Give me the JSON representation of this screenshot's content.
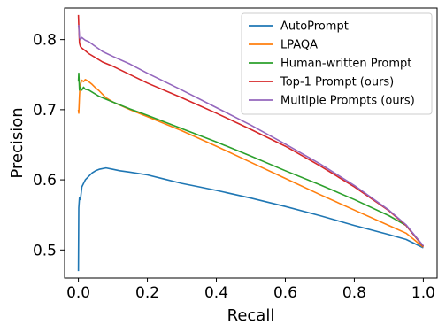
{
  "chart_data": {
    "type": "line",
    "xlabel": "Recall",
    "ylabel": "Precision",
    "xlim": [
      -0.04,
      1.04
    ],
    "ylim": [
      0.46,
      0.845
    ],
    "xticks": [
      0.0,
      0.2,
      0.4,
      0.6,
      0.8,
      1.0
    ],
    "xtick_labels": [
      "0.0",
      "0.2",
      "0.4",
      "0.6",
      "0.8",
      "1.0"
    ],
    "yticks": [
      0.5,
      0.6,
      0.7,
      0.8
    ],
    "ytick_labels": [
      "0.5",
      "0.6",
      "0.7",
      "0.8"
    ],
    "grid": false,
    "legend_position": "top-right",
    "series": [
      {
        "name": "AutoPrompt",
        "color": "#1f77b4",
        "x": [
          0.0,
          0.001,
          0.003,
          0.006,
          0.01,
          0.015,
          0.02,
          0.03,
          0.04,
          0.05,
          0.06,
          0.08,
          0.1,
          0.12,
          0.15,
          0.2,
          0.25,
          0.3,
          0.35,
          0.4,
          0.5,
          0.6,
          0.7,
          0.8,
          0.9,
          0.95,
          1.0
        ],
        "y": [
          0.47,
          0.56,
          0.575,
          0.572,
          0.59,
          0.595,
          0.6,
          0.605,
          0.61,
          0.613,
          0.615,
          0.617,
          0.615,
          0.613,
          0.611,
          0.607,
          0.601,
          0.595,
          0.59,
          0.585,
          0.574,
          0.562,
          0.549,
          0.535,
          0.522,
          0.515,
          0.503
        ]
      },
      {
        "name": "LPAQA",
        "color": "#ff7f0e",
        "x": [
          0.0,
          0.001,
          0.003,
          0.005,
          0.01,
          0.015,
          0.02,
          0.03,
          0.04,
          0.05,
          0.06,
          0.08,
          0.1,
          0.15,
          0.2,
          0.3,
          0.4,
          0.5,
          0.6,
          0.7,
          0.8,
          0.9,
          0.95,
          1.0
        ],
        "y": [
          0.7,
          0.695,
          0.72,
          0.735,
          0.742,
          0.74,
          0.743,
          0.74,
          0.736,
          0.731,
          0.727,
          0.717,
          0.711,
          0.7,
          0.69,
          0.67,
          0.648,
          0.625,
          0.602,
          0.579,
          0.557,
          0.535,
          0.524,
          0.504
        ]
      },
      {
        "name": "Human-written Prompt",
        "color": "#2ca02c",
        "x": [
          0.0,
          0.001,
          0.003,
          0.005,
          0.01,
          0.015,
          0.02,
          0.03,
          0.04,
          0.05,
          0.06,
          0.08,
          0.1,
          0.15,
          0.2,
          0.3,
          0.4,
          0.5,
          0.6,
          0.7,
          0.8,
          0.9,
          0.95,
          1.0
        ],
        "y": [
          0.74,
          0.752,
          0.728,
          0.732,
          0.728,
          0.732,
          0.729,
          0.728,
          0.725,
          0.722,
          0.719,
          0.715,
          0.711,
          0.701,
          0.692,
          0.673,
          0.654,
          0.634,
          0.613,
          0.593,
          0.572,
          0.549,
          0.535,
          0.505
        ]
      },
      {
        "name": "Top-1 Prompt (ours)",
        "color": "#d62728",
        "x": [
          0.0,
          0.001,
          0.003,
          0.006,
          0.01,
          0.015,
          0.02,
          0.03,
          0.05,
          0.07,
          0.1,
          0.15,
          0.2,
          0.3,
          0.4,
          0.5,
          0.6,
          0.7,
          0.8,
          0.9,
          0.95,
          1.0
        ],
        "y": [
          0.835,
          0.82,
          0.795,
          0.79,
          0.788,
          0.786,
          0.784,
          0.78,
          0.774,
          0.768,
          0.762,
          0.75,
          0.738,
          0.717,
          0.695,
          0.672,
          0.648,
          0.62,
          0.59,
          0.556,
          0.535,
          0.505
        ]
      },
      {
        "name": "Multiple Prompts (ours)",
        "color": "#9467bd",
        "x": [
          0.0,
          0.001,
          0.003,
          0.006,
          0.01,
          0.015,
          0.02,
          0.03,
          0.05,
          0.07,
          0.1,
          0.15,
          0.2,
          0.3,
          0.4,
          0.5,
          0.6,
          0.7,
          0.8,
          0.9,
          0.95,
          1.0
        ],
        "y": [
          0.818,
          0.82,
          0.803,
          0.8,
          0.803,
          0.801,
          0.799,
          0.797,
          0.79,
          0.783,
          0.776,
          0.765,
          0.752,
          0.728,
          0.703,
          0.678,
          0.651,
          0.623,
          0.592,
          0.557,
          0.536,
          0.506
        ]
      }
    ]
  }
}
